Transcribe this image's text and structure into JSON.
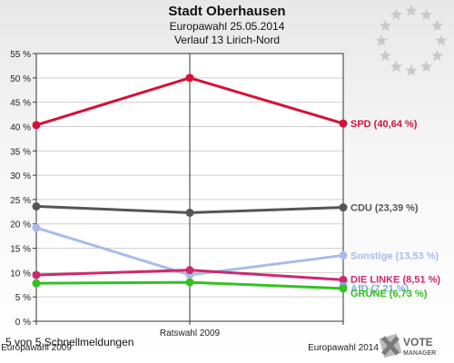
{
  "header": {
    "title": "Stadt Oberhausen",
    "subtitle1": "Europawahl 25.05.2014",
    "subtitle2": "Verlauf 13 Lirich-Nord"
  },
  "footer": {
    "note": "5 von 5 Schnellmeldungen",
    "logo_text_vote": "VOTE",
    "logo_text_manager": "MANAGER"
  },
  "chart_data": {
    "type": "line",
    "categories": [
      "Europawahl 2009",
      "Ratswahl 2009",
      "Europawahl 2014"
    ],
    "ylim": [
      0,
      55
    ],
    "y_ticks": [
      "0 %",
      "5 %",
      "10 %",
      "15 %",
      "20 %",
      "25 %",
      "30 %",
      "35 %",
      "40 %",
      "45 %",
      "50 %",
      "55 %"
    ],
    "y_tick_values": [
      0,
      5,
      10,
      15,
      20,
      25,
      30,
      35,
      40,
      45,
      50,
      55
    ],
    "grid": "horizontal",
    "series": [
      {
        "name": "SPD",
        "label": "SPD (40,64 %)",
        "values": [
          40.3,
          50.0,
          40.64
        ],
        "color": "#d4113a"
      },
      {
        "name": "CDU",
        "label": "CDU (23,39 %)",
        "values": [
          23.6,
          22.3,
          23.39
        ],
        "color": "#555555"
      },
      {
        "name": "Sonstige",
        "label": "Sonstige (13,53 %)",
        "values": [
          19.2,
          9.5,
          13.53
        ],
        "color": "#a9bbe8"
      },
      {
        "name": "DIE LINKE",
        "label": "DIE LINKE (8,51 %)",
        "values": [
          9.5,
          10.5,
          8.51
        ],
        "color": "#cc2a6e"
      },
      {
        "name": "AfD",
        "label": "AfD (7,21 %)",
        "values": [
          null,
          null,
          7.21
        ],
        "color": "#7fb0e0"
      },
      {
        "name": "GRÜNE",
        "label": "GRÜNE (6,73 %)",
        "values": [
          7.8,
          8.0,
          6.73
        ],
        "color": "#33c21f"
      }
    ]
  }
}
